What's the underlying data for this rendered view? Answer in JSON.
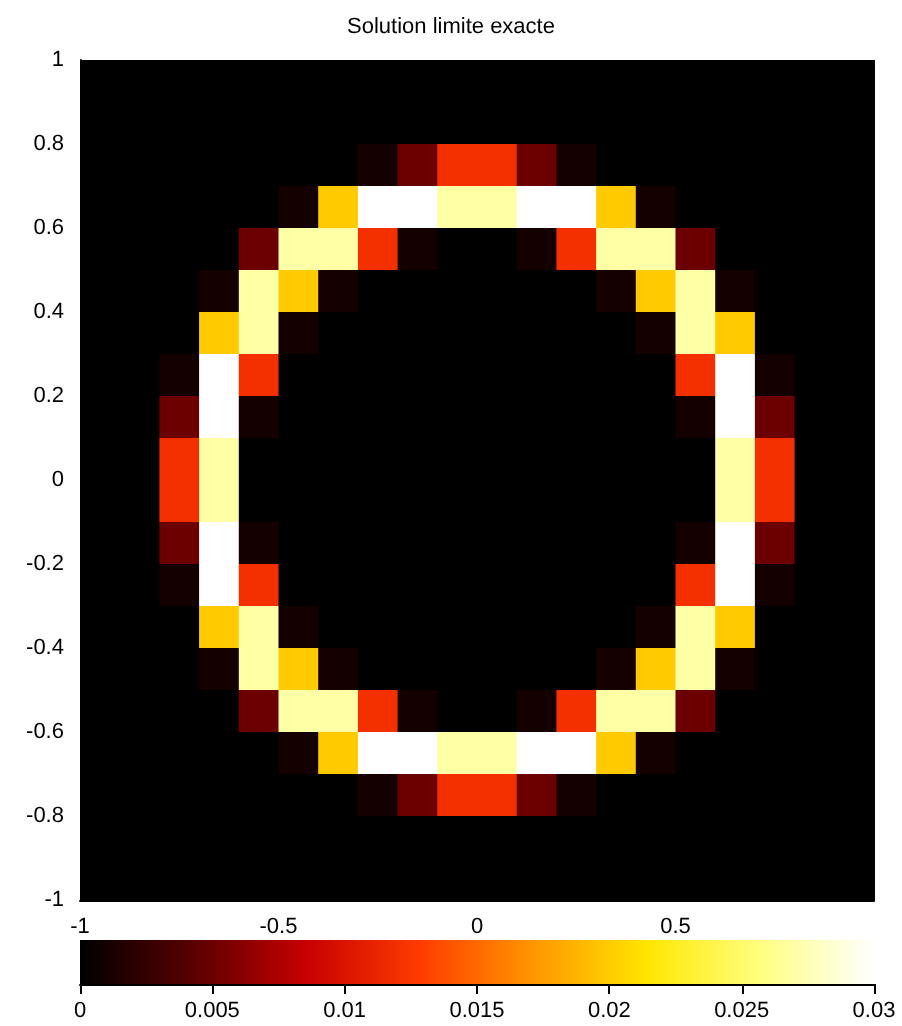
{
  "chart_data": {
    "type": "heatmap",
    "title": "Solution limite exacte",
    "x": [
      -0.95,
      -0.85,
      -0.75,
      -0.65,
      -0.55,
      -0.45,
      -0.35,
      -0.25,
      -0.15,
      -0.05,
      0.05,
      0.15,
      0.25,
      0.35,
      0.45,
      0.55,
      0.65,
      0.75,
      0.85,
      0.95
    ],
    "y": [
      0.95,
      0.85,
      0.75,
      0.65,
      0.55,
      0.45,
      0.35,
      0.25,
      0.15,
      0.05,
      -0.05,
      -0.15,
      -0.25,
      -0.35,
      -0.45,
      -0.55,
      -0.65,
      -0.75,
      -0.85,
      -0.95
    ],
    "cells": [
      [
        0,
        0,
        0,
        0,
        0,
        0,
        0,
        0,
        0,
        0,
        0,
        0,
        0,
        0,
        0,
        0,
        0,
        0,
        0,
        0
      ],
      [
        0,
        0,
        0,
        0,
        0,
        0,
        0,
        0,
        0,
        0,
        0,
        0,
        0,
        0,
        0,
        0,
        0,
        0,
        0,
        0
      ],
      [
        0,
        0,
        0,
        0,
        0,
        0,
        0,
        0.001,
        0.005,
        0.012,
        0.012,
        0.005,
        0.001,
        0,
        0,
        0,
        0,
        0,
        0,
        0
      ],
      [
        0,
        0,
        0,
        0,
        0,
        0.001,
        0.02,
        0.03,
        0.03,
        0.027,
        0.027,
        0.03,
        0.03,
        0.02,
        0.001,
        0,
        0,
        0,
        0,
        0
      ],
      [
        0,
        0,
        0,
        0,
        0.005,
        0.027,
        0.027,
        0.012,
        0.001,
        0,
        0,
        0.001,
        0.012,
        0.027,
        0.027,
        0.005,
        0,
        0,
        0,
        0
      ],
      [
        0,
        0,
        0,
        0.001,
        0.027,
        0.02,
        0.001,
        0,
        0,
        0,
        0,
        0,
        0,
        0.001,
        0.02,
        0.027,
        0.001,
        0,
        0,
        0
      ],
      [
        0,
        0,
        0,
        0.02,
        0.027,
        0.001,
        0,
        0,
        0,
        0,
        0,
        0,
        0,
        0,
        0.001,
        0.027,
        0.02,
        0,
        0,
        0
      ],
      [
        0,
        0,
        0.001,
        0.03,
        0.012,
        0,
        0,
        0,
        0,
        0,
        0,
        0,
        0,
        0,
        0,
        0.012,
        0.03,
        0.001,
        0,
        0
      ],
      [
        0,
        0,
        0.005,
        0.03,
        0.001,
        0,
        0,
        0,
        0,
        0,
        0,
        0,
        0,
        0,
        0,
        0.001,
        0.03,
        0.005,
        0,
        0
      ],
      [
        0,
        0,
        0.012,
        0.027,
        0,
        0,
        0,
        0,
        0,
        0,
        0,
        0,
        0,
        0,
        0,
        0,
        0.027,
        0.012,
        0,
        0
      ],
      [
        0,
        0,
        0.012,
        0.027,
        0,
        0,
        0,
        0,
        0,
        0,
        0,
        0,
        0,
        0,
        0,
        0,
        0.027,
        0.012,
        0,
        0
      ],
      [
        0,
        0,
        0.005,
        0.03,
        0.001,
        0,
        0,
        0,
        0,
        0,
        0,
        0,
        0,
        0,
        0,
        0.001,
        0.03,
        0.005,
        0,
        0
      ],
      [
        0,
        0,
        0.001,
        0.03,
        0.012,
        0,
        0,
        0,
        0,
        0,
        0,
        0,
        0,
        0,
        0,
        0.012,
        0.03,
        0.001,
        0,
        0
      ],
      [
        0,
        0,
        0,
        0.02,
        0.027,
        0.001,
        0,
        0,
        0,
        0,
        0,
        0,
        0,
        0,
        0.001,
        0.027,
        0.02,
        0,
        0,
        0
      ],
      [
        0,
        0,
        0,
        0.001,
        0.027,
        0.02,
        0.001,
        0,
        0,
        0,
        0,
        0,
        0,
        0.001,
        0.02,
        0.027,
        0.001,
        0,
        0,
        0
      ],
      [
        0,
        0,
        0,
        0,
        0.005,
        0.027,
        0.027,
        0.012,
        0.001,
        0,
        0,
        0.001,
        0.012,
        0.027,
        0.027,
        0.005,
        0,
        0,
        0,
        0
      ],
      [
        0,
        0,
        0,
        0,
        0,
        0.001,
        0.02,
        0.03,
        0.03,
        0.027,
        0.027,
        0.03,
        0.03,
        0.02,
        0.001,
        0,
        0,
        0,
        0,
        0
      ],
      [
        0,
        0,
        0,
        0,
        0,
        0,
        0,
        0.001,
        0.005,
        0.012,
        0.012,
        0.005,
        0.001,
        0,
        0,
        0,
        0,
        0,
        0,
        0
      ],
      [
        0,
        0,
        0,
        0,
        0,
        0,
        0,
        0,
        0,
        0,
        0,
        0,
        0,
        0,
        0,
        0,
        0,
        0,
        0,
        0
      ],
      [
        0,
        0,
        0,
        0,
        0,
        0,
        0,
        0,
        0,
        0,
        0,
        0,
        0,
        0,
        0,
        0,
        0,
        0,
        0,
        0
      ]
    ],
    "xlim": [
      -1,
      1
    ],
    "xticks": [
      -1,
      -0.5,
      0,
      0.5
    ],
    "ylim": [
      -1,
      1
    ],
    "yticks": [
      -1,
      -0.8,
      -0.6,
      -0.4,
      -0.2,
      0,
      0.2,
      0.4,
      0.6,
      0.8,
      1
    ],
    "clim": [
      0,
      0.03
    ],
    "cticks": [
      0,
      0.005,
      0.01,
      0.015,
      0.02,
      0.025,
      0.03
    ]
  }
}
